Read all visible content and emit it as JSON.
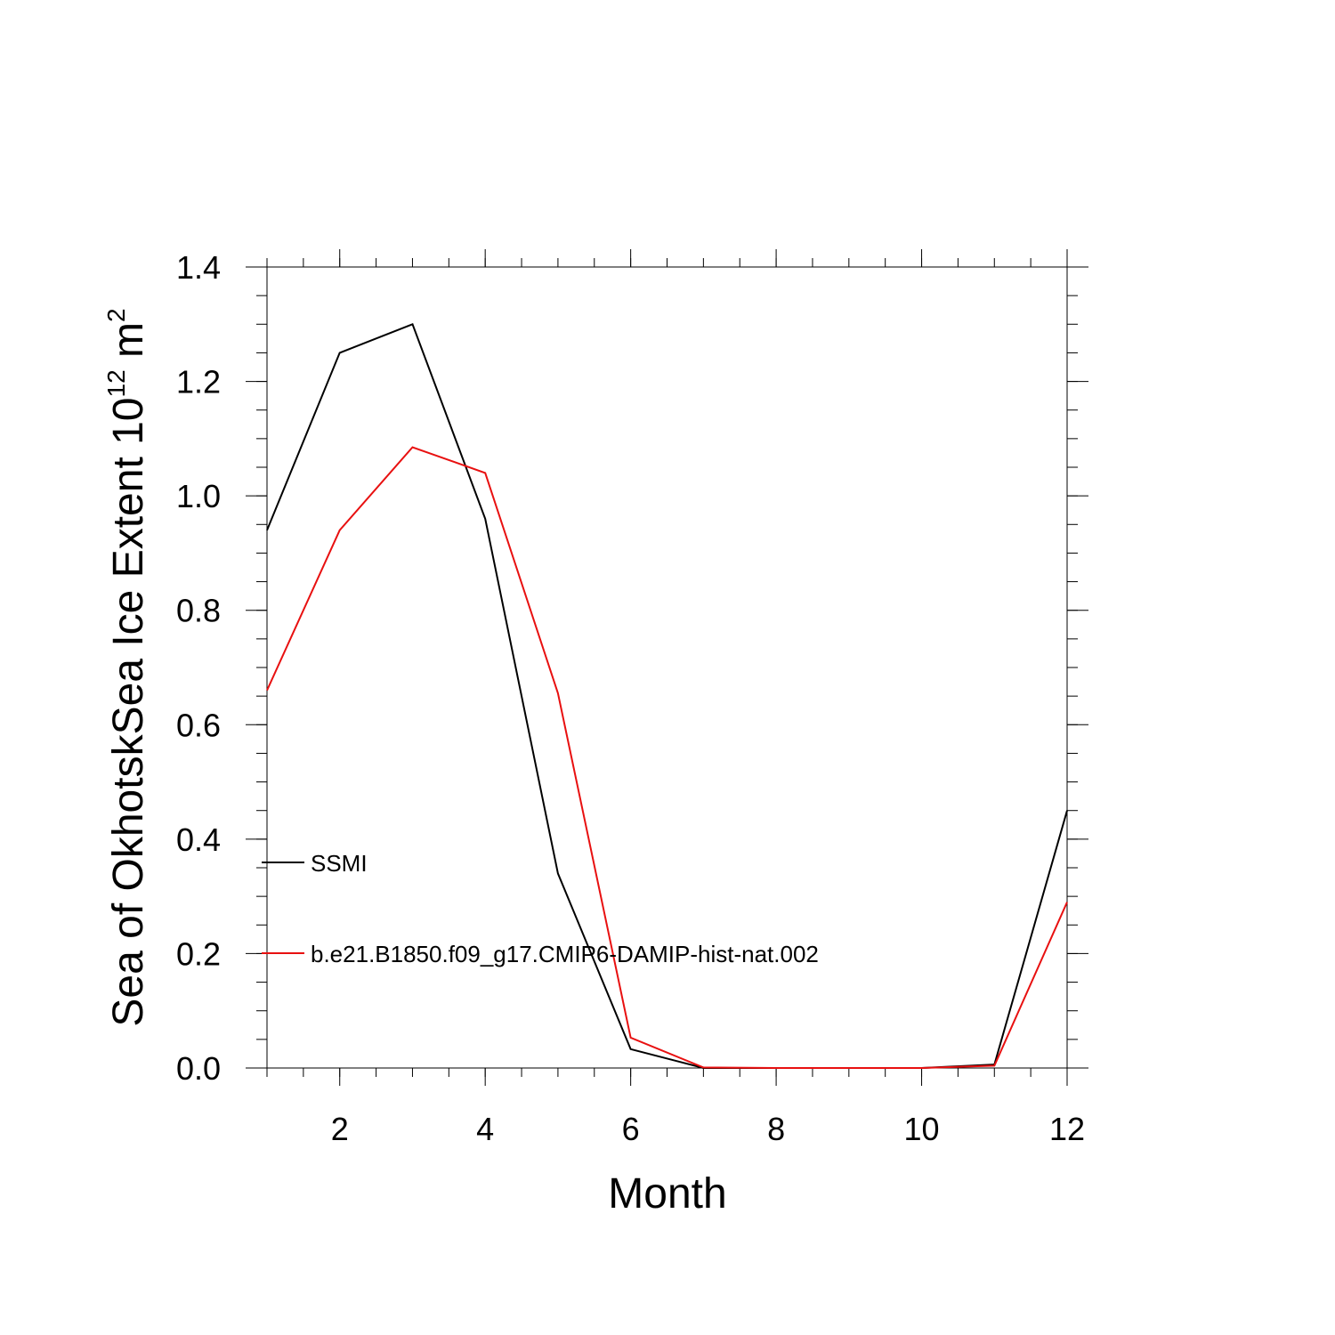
{
  "chart_data": {
    "type": "line",
    "title": "",
    "xlabel": "Month",
    "ylabel_main": "Sea of OkhotskSea Ice Extent 10",
    "ylabel_sup1": "12",
    "ylabel_unit": " m",
    "ylabel_sup2": "2",
    "xlim": [
      1,
      12
    ],
    "ylim": [
      0,
      1.4
    ],
    "xticks": [
      2,
      4,
      6,
      8,
      10,
      12
    ],
    "yticks": [
      "0.0",
      "0.2",
      "0.4",
      "0.6",
      "0.8",
      "1.0",
      "1.2",
      "1.4"
    ],
    "grid": false,
    "legend_position": "left-center",
    "x": [
      1,
      2,
      3,
      4,
      5,
      6,
      7,
      8,
      9,
      10,
      11,
      12
    ],
    "series": [
      {
        "name": "SSMI",
        "color": "#000000",
        "values": [
          0.94,
          1.25,
          1.3,
          0.96,
          0.34,
          0.033,
          0.0,
          0.0,
          0.0,
          0.0,
          0.006,
          0.45
        ]
      },
      {
        "name": "b.e21.B1850.f09_g17.CMIP6-DAMIP-hist-nat.002",
        "color": "#e81010",
        "values": [
          0.66,
          0.94,
          1.085,
          1.04,
          0.655,
          0.053,
          0.001,
          0.0,
          0.0,
          0.0,
          0.004,
          0.29
        ]
      }
    ]
  }
}
